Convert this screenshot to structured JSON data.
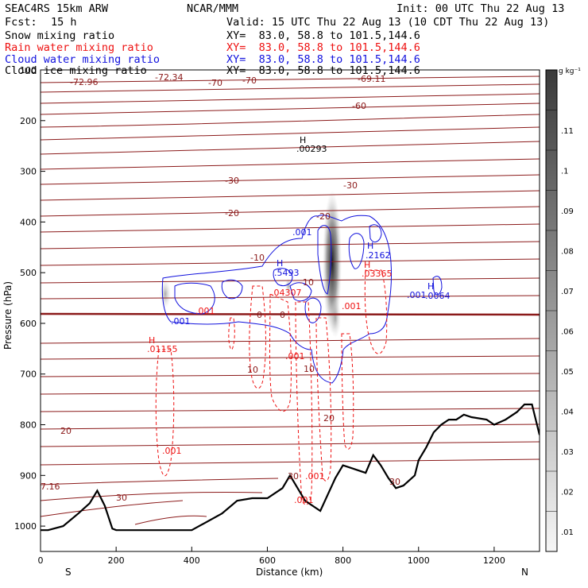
{
  "header": {
    "model": "SEAC4RS 15km ARW",
    "org": "NCAR/MMM",
    "init": "Init: 00 UTC Thu 22 Aug 13",
    "fcst_label": "Fcst:",
    "fcst_value": "15 h",
    "valid": "Valid: 15 UTC Thu 22 Aug 13 (10 CDT Thu 22 Aug 13)"
  },
  "fields": [
    {
      "name": "Snow mixing ratio",
      "xy": "XY=  83.0, 58.8 to 101.5,144.6",
      "color": "#000000"
    },
    {
      "name": "Rain water mixing ratio",
      "xy": "XY=  83.0, 58.8 to 101.5,144.6",
      "color": "#ee1111"
    },
    {
      "name": "Cloud water mixing ratio",
      "xy": "XY=  83.0, 58.8 to 101.5,144.6",
      "color": "#1111dd"
    },
    {
      "name": "Cloud ice mixing ratio",
      "xy": "XY=  83.0, 58.8 to 101.5,144.6",
      "color": "#000000"
    }
  ],
  "chart_data": {
    "type": "contour",
    "xlabel": "Distance (km)",
    "ylabel": "Pressure (hPa)",
    "xlim": [
      0,
      1320
    ],
    "ylim": [
      1050,
      100
    ],
    "x_ticks": [
      0,
      200,
      400,
      600,
      800,
      1000,
      1200
    ],
    "y_ticks": [
      100,
      200,
      300,
      400,
      500,
      600,
      700,
      800,
      900,
      1000
    ],
    "x_end_labels": {
      "left": "S",
      "right": "N"
    },
    "colorbar": {
      "unit": "g kg⁻¹",
      "levels": [
        "",
        ".11",
        ".1",
        ".09",
        ".08",
        ".07",
        ".06",
        ".05",
        ".04",
        ".03",
        ".02",
        ".01"
      ]
    },
    "temperature_labels": [
      "-72.96",
      "-72.34",
      "-70",
      "-70",
      "-69.11",
      "-60",
      "-30",
      "-30",
      "-20",
      "-20",
      "-10",
      "-10",
      "0",
      "0",
      "10",
      "10",
      "20",
      "20",
      "30",
      "30",
      "7.16"
    ],
    "extrema_labels": [
      {
        "mark": "H",
        "value": ".00293"
      },
      {
        "mark": "H",
        "value": ".2162"
      },
      {
        "mark": "H",
        "value": ".03365"
      },
      {
        "mark": "H",
        "value": ".0064"
      },
      {
        "mark": "H",
        "value": ".5493"
      },
      {
        "mark": "H",
        "value": ".01155"
      }
    ],
    "cloud_water_labels": [
      ".001",
      ".001",
      ".001",
      ".001",
      ".5493"
    ],
    "rain_water_labels": [
      ".001",
      ".001",
      ".001",
      ".001",
      ".001",
      ".04307",
      ".03365",
      ".01155"
    ],
    "terrain_km": [
      0,
      20,
      60,
      100,
      130,
      150,
      170,
      190,
      200,
      300,
      400,
      480,
      520,
      560,
      600,
      640,
      660,
      700,
      740,
      780,
      800,
      820,
      860,
      880,
      900,
      920,
      940,
      960,
      990,
      1000,
      1020,
      1040,
      1060,
      1080,
      1100,
      1120,
      1140,
      1180,
      1200,
      1230,
      1260,
      1280,
      1300,
      1320
    ],
    "terrain_hpa": [
      1008,
      1008,
      1000,
      975,
      955,
      930,
      960,
      1005,
      1008,
      1008,
      1008,
      975,
      950,
      945,
      945,
      925,
      900,
      950,
      970,
      905,
      880,
      885,
      895,
      860,
      880,
      905,
      925,
      920,
      900,
      870,
      845,
      815,
      800,
      790,
      790,
      780,
      785,
      790,
      800,
      790,
      775,
      760,
      760,
      820
    ]
  }
}
